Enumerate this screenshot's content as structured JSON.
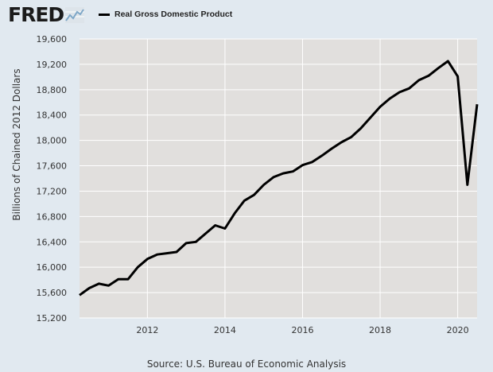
{
  "header": {
    "logo_text": "FRED",
    "logo_icon": "line-chart-icon"
  },
  "chart_data": {
    "type": "line",
    "title": "",
    "xlabel": "",
    "ylabel": "Billions of Chained 2012 Dollars",
    "source": "Source: U.S. Bureau of Economic Analysis",
    "legend": "top-left",
    "grid": true,
    "ylim": [
      15200,
      19600
    ],
    "xlim": [
      2010.25,
      2020.5
    ],
    "y_ticks": [
      "19,600",
      "19,200",
      "18,800",
      "18,400",
      "18,000",
      "17,600",
      "17,200",
      "16,800",
      "16,400",
      "16,000",
      "15,600",
      "15,200"
    ],
    "y_tick_values": [
      19600,
      19200,
      18800,
      18400,
      18000,
      17600,
      17200,
      16800,
      16400,
      16000,
      15600,
      15200
    ],
    "x_ticks": [
      "2012",
      "2014",
      "2016",
      "2018",
      "2020"
    ],
    "x_tick_values": [
      2012,
      2014,
      2016,
      2018,
      2020
    ],
    "series": [
      {
        "name": "Real Gross Domestic Product",
        "color": "#000000",
        "x": [
          "2010-Q2",
          "2010-Q3",
          "2010-Q4",
          "2011-Q1",
          "2011-Q2",
          "2011-Q3",
          "2011-Q4",
          "2012-Q1",
          "2012-Q2",
          "2012-Q3",
          "2012-Q4",
          "2013-Q1",
          "2013-Q2",
          "2013-Q3",
          "2013-Q4",
          "2014-Q1",
          "2014-Q2",
          "2014-Q3",
          "2014-Q4",
          "2015-Q1",
          "2015-Q2",
          "2015-Q3",
          "2015-Q4",
          "2016-Q1",
          "2016-Q2",
          "2016-Q3",
          "2016-Q4",
          "2017-Q1",
          "2017-Q2",
          "2017-Q3",
          "2017-Q4",
          "2018-Q1",
          "2018-Q2",
          "2018-Q3",
          "2018-Q4",
          "2019-Q1",
          "2019-Q2",
          "2019-Q3",
          "2019-Q4",
          "2020-Q1",
          "2020-Q2",
          "2020-Q3"
        ],
        "values": [
          15560,
          15670,
          15740,
          15710,
          15810,
          15810,
          16000,
          16130,
          16200,
          16220,
          16240,
          16380,
          16400,
          16530,
          16660,
          16610,
          16850,
          17050,
          17140,
          17300,
          17420,
          17480,
          17510,
          17610,
          17660,
          17760,
          17870,
          17970,
          18050,
          18190,
          18360,
          18530,
          18660,
          18760,
          18820,
          18950,
          19020,
          19140,
          19250,
          19010,
          17300,
          18570
        ]
      }
    ]
  }
}
